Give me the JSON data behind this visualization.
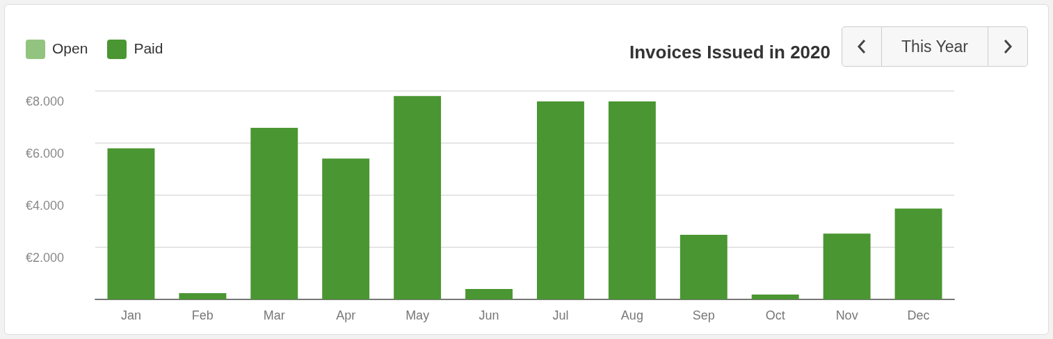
{
  "chart_data": {
    "type": "bar",
    "title": "Invoices Issued in 2020",
    "stacked": true,
    "legend": "top left",
    "grid": "y",
    "categories": [
      "Jan",
      "Feb",
      "Mar",
      "Apr",
      "May",
      "Jun",
      "Jul",
      "Aug",
      "Sep",
      "Oct",
      "Nov",
      "Dec"
    ],
    "series": [
      {
        "name": "Open",
        "color": "#92c47f",
        "values": [
          0,
          0,
          0,
          0,
          0,
          0,
          0,
          0,
          0,
          0,
          0,
          0
        ]
      },
      {
        "name": "Paid",
        "color": "#4a9632",
        "values": [
          5800,
          240,
          6590,
          5410,
          7810,
          400,
          7600,
          7600,
          2480,
          190,
          2530,
          3490
        ]
      }
    ],
    "ylim": [
      0,
      8000
    ],
    "yticks": [
      {
        "value": 0,
        "label": null
      },
      {
        "value": 2000,
        "label": "€2.000"
      },
      {
        "value": 4000,
        "label": "€4.000"
      },
      {
        "value": 6000,
        "label": "€6.000"
      },
      {
        "value": 8000,
        "label": "€8.000"
      }
    ],
    "annotations": [
      "This Year"
    ]
  }
}
